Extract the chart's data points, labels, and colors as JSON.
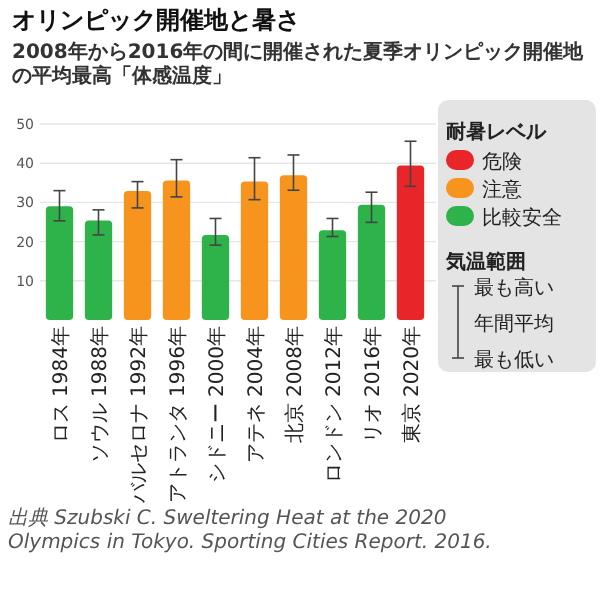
{
  "chart_data": {
    "type": "bar",
    "title": "オリンピック開催地と暑さ",
    "subtitle": "2008年から2016年の間に開催された夏季オリンピック開催地の平均最高「体感温度」",
    "categories": [
      "ロス\n1984年",
      "ソウル\n1988年",
      "バルセロナ\n1992年",
      "アトランタ\n1996年",
      "シドニー\n2000年",
      "アテネ\n2004年",
      "北京\n2008年",
      "ロンドン\n2012年",
      "リオ\n2016年",
      "東京\n2020年"
    ],
    "series": [
      {
        "name": "危険",
        "color": "#e8262a",
        "values": [
          null,
          null,
          null,
          null,
          null,
          null,
          null,
          null,
          null,
          39.4
        ],
        "errors": [
          null,
          null,
          null,
          null,
          null,
          null,
          null,
          null,
          null,
          [
            34.1,
            45.6
          ]
        ]
      },
      {
        "name": "注意",
        "color": "#f7941d",
        "values": [
          null,
          null,
          32.9,
          35.6,
          null,
          35.3,
          36.9,
          null,
          null,
          null
        ],
        "errors": [
          null,
          null,
          [
            28.6,
            35.3
          ],
          [
            31.4,
            40.9
          ],
          null,
          [
            30.7,
            41.4
          ],
          [
            33.1,
            42.1
          ],
          null,
          null,
          null
        ]
      },
      {
        "name": "比較安全",
        "color": "#2db34a",
        "values": [
          29,
          25.4,
          null,
          null,
          21.7,
          null,
          null,
          22.9,
          29.4,
          null
        ],
        "errors": [
          [
            25.3,
            33
          ],
          [
            21.7,
            28.1
          ],
          null,
          null,
          [
            19.1,
            25.9
          ],
          null,
          null,
          [
            21.3,
            25.9
          ],
          [
            24.9,
            32.6
          ],
          null
        ]
      }
    ],
    "legend_title": "耐暑レベル",
    "legend": "right",
    "ylim": [
      0,
      50
    ],
    "yticks": [
      10,
      20,
      30,
      40,
      50
    ],
    "grid": "y",
    "annotations": [
      "気温範囲",
      "最も高い",
      "年間平均",
      "最も低い",
      "出典 Szubski C. Sweltering Heat at the 2020 Olympics in Tokyo. Sporting Cities Report. 2016."
    ]
  }
}
